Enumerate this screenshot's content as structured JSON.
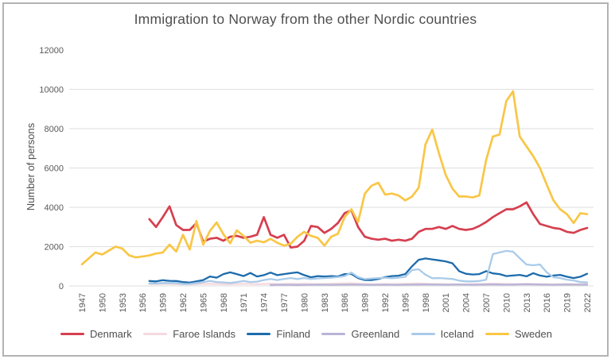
{
  "frame": {
    "border_color": "#b3b3b3",
    "background": "#ffffff"
  },
  "title": "Immigration to Norway from the other Nordic countries",
  "y_axis": {
    "label": "Number of persons",
    "ticks": [
      0,
      2000,
      4000,
      6000,
      8000,
      10000,
      12000
    ],
    "gridline_max": 10000
  },
  "x_axis": {
    "tick_years": [
      1947,
      1950,
      1953,
      1956,
      1959,
      1962,
      1965,
      1968,
      1971,
      1974,
      1977,
      1980,
      1983,
      1986,
      1989,
      1992,
      1995,
      1998,
      2001,
      2004,
      2007,
      2010,
      2013,
      2016,
      2019,
      2022
    ]
  },
  "chart_data": {
    "type": "line",
    "title": "Immigration to Norway from the other Nordic countries",
    "xlabel": "",
    "ylabel": "Number of persons",
    "xlim": [
      1947,
      2022
    ],
    "ylim": [
      0,
      12000
    ],
    "grid": "horizontal",
    "legend_position": "bottom",
    "series": [
      {
        "name": "Denmark",
        "color": "#d63f4f",
        "start_year": 1957,
        "values": [
          3400,
          3000,
          3500,
          4050,
          3100,
          2850,
          2850,
          3200,
          2250,
          2400,
          2450,
          2300,
          2500,
          2550,
          2450,
          2500,
          2600,
          3500,
          2600,
          2450,
          2600,
          1950,
          2000,
          2300,
          3050,
          3000,
          2700,
          2900,
          3200,
          3700,
          3850,
          3000,
          2500,
          2400,
          2350,
          2400,
          2300,
          2350,
          2300,
          2400,
          2750,
          2900,
          2900,
          3000,
          2900,
          3050,
          2900,
          2850,
          2900,
          3050,
          3250,
          3500,
          3700,
          3900,
          3900,
          4050,
          4250,
          3650,
          3150,
          3050,
          2950,
          2900,
          2750,
          2700,
          2850,
          2950
        ]
      },
      {
        "name": "Faroe Islands",
        "color": "#f5d9df",
        "start_year": 1957,
        "values": [
          100,
          90,
          110,
          100,
          90,
          80,
          80,
          90,
          100,
          110,
          100,
          90,
          90,
          100,
          110,
          100,
          90,
          100,
          110,
          100,
          100,
          110,
          100,
          110,
          100,
          90,
          100,
          110,
          120,
          130,
          140,
          120,
          100,
          90,
          90,
          100,
          90,
          100,
          110,
          120,
          130,
          110,
          100,
          100,
          90,
          90,
          80,
          80,
          90,
          100,
          110,
          120,
          110,
          100,
          90,
          100,
          110,
          100,
          90,
          90,
          80,
          90,
          100,
          90,
          100,
          110
        ]
      },
      {
        "name": "Finland",
        "color": "#1c6bac",
        "start_year": 1957,
        "values": [
          250,
          230,
          290,
          260,
          250,
          200,
          170,
          230,
          300,
          480,
          420,
          600,
          690,
          600,
          500,
          660,
          480,
          550,
          680,
          550,
          600,
          650,
          690,
          550,
          440,
          500,
          480,
          500,
          480,
          600,
          610,
          400,
          300,
          300,
          350,
          450,
          500,
          520,
          600,
          1000,
          1330,
          1400,
          1350,
          1300,
          1250,
          1150,
          750,
          620,
          580,
          600,
          750,
          640,
          600,
          500,
          530,
          560,
          490,
          650,
          530,
          470,
          530,
          560,
          470,
          400,
          470,
          620
        ]
      },
      {
        "name": "Greenland",
        "color": "#b8b4d6",
        "start_year": 1975,
        "values": [
          50,
          55,
          60,
          55,
          50,
          55,
          60,
          65,
          60,
          55,
          60,
          65,
          70,
          65,
          60,
          55,
          60,
          65,
          60,
          55,
          60,
          65,
          70,
          75,
          70,
          65,
          60,
          65,
          70,
          65,
          60,
          65,
          70,
          75,
          70,
          65,
          70,
          75,
          80,
          75,
          70,
          65,
          60,
          65,
          70,
          65,
          60,
          65
        ]
      },
      {
        "name": "Iceland",
        "color": "#a9cbe9",
        "start_year": 1957,
        "values": [
          130,
          130,
          150,
          150,
          150,
          100,
          100,
          150,
          200,
          250,
          200,
          180,
          150,
          200,
          250,
          200,
          220,
          300,
          350,
          300,
          350,
          400,
          350,
          400,
          350,
          380,
          400,
          420,
          450,
          500,
          680,
          450,
          350,
          380,
          400,
          420,
          390,
          420,
          460,
          810,
          850,
          570,
          390,
          400,
          380,
          350,
          270,
          230,
          230,
          250,
          310,
          1620,
          1700,
          1780,
          1740,
          1410,
          1090,
          1050,
          1090,
          690,
          440,
          400,
          320,
          280,
          200,
          180
        ]
      },
      {
        "name": "Sweden",
        "color": "#f9c646",
        "start_year": 1947,
        "values": [
          1100,
          1400,
          1700,
          1600,
          1800,
          2000,
          1900,
          1550,
          1450,
          1500,
          1550,
          1650,
          1700,
          2100,
          1750,
          2600,
          1850,
          3300,
          2100,
          2800,
          3230,
          2630,
          2170,
          2830,
          2540,
          2200,
          2300,
          2220,
          2400,
          2200,
          2050,
          2150,
          2500,
          2750,
          2550,
          2450,
          2050,
          2500,
          2650,
          3500,
          3900,
          3250,
          4700,
          5100,
          5250,
          4650,
          4700,
          4600,
          4350,
          4550,
          5000,
          7200,
          7950,
          6750,
          5650,
          4950,
          4550,
          4550,
          4500,
          4600,
          6400,
          7600,
          7700,
          9400,
          9900,
          7600,
          7100,
          6600,
          6000,
          5150,
          4350,
          3900,
          3650,
          3200,
          3700,
          3650
        ]
      }
    ]
  }
}
